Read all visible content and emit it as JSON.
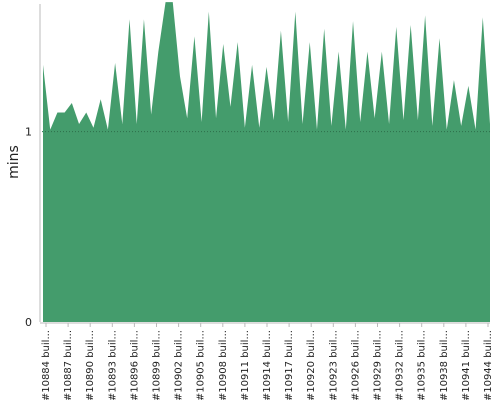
{
  "chart_data": {
    "type": "area",
    "ylabel": "mins",
    "ylim": [
      0,
      1.67
    ],
    "y_ticks": [
      0,
      1
    ],
    "grid": "dotted horizontal line at 1",
    "color": "#449c6c",
    "x_tick_labels": [
      "#10884 buil...",
      "#10887 buil...",
      "#10890 buil...",
      "#10893 buil...",
      "#10896 buil...",
      "#10899 buil...",
      "#10902 buil...",
      "#10905 buil...",
      "#10908 buil...",
      "#10911 buil...",
      "#10914 buil...",
      "#10917 buil...",
      "#10920 buil...",
      "#10923 buil...",
      "#10926 buil...",
      "#10929 buil...",
      "#10932 buil...",
      "#10935 buil...",
      "#10938 buil...",
      "#10941 buil...",
      "#10944 buil..."
    ],
    "values": [
      1.35,
      1.01,
      1.1,
      1.1,
      1.15,
      1.04,
      1.1,
      1.02,
      1.17,
      1.01,
      1.36,
      1.04,
      1.59,
      1.04,
      1.59,
      1.09,
      1.42,
      1.68,
      1.68,
      1.29,
      1.07,
      1.5,
      1.05,
      1.63,
      1.07,
      1.46,
      1.13,
      1.47,
      1.02,
      1.35,
      1.02,
      1.34,
      1.06,
      1.53,
      1.05,
      1.63,
      1.04,
      1.47,
      1.01,
      1.54,
      1.03,
      1.42,
      1.01,
      1.58,
      1.05,
      1.42,
      1.07,
      1.42,
      1.04,
      1.55,
      1.06,
      1.56,
      1.06,
      1.61,
      1.03,
      1.49,
      1.01,
      1.27,
      1.03,
      1.24,
      1.01,
      1.6,
      1.04
    ]
  }
}
